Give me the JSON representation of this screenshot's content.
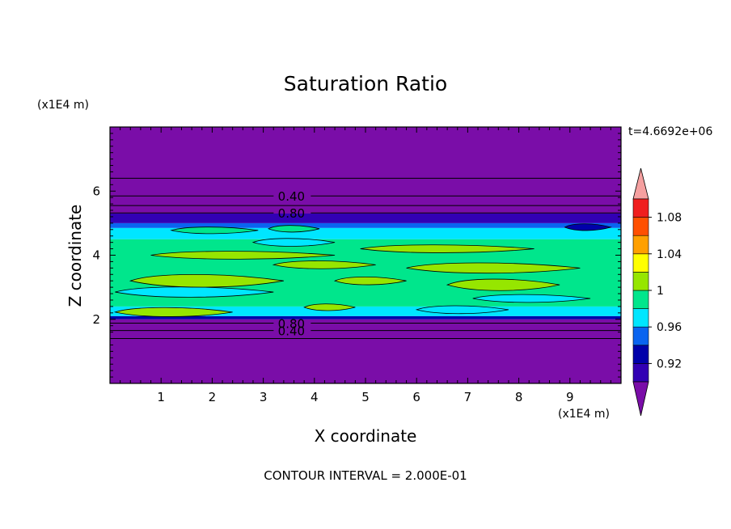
{
  "chart_data": {
    "type": "heatmap",
    "title": "Saturation Ratio",
    "xlabel": "X coordinate",
    "ylabel": "Z coordinate",
    "x_unit": "(x1E4 m)",
    "y_unit": "(x1E4 m)",
    "time_label": "t=4.6692e+06",
    "footer": "CONTOUR INTERVAL = 2.000E-01",
    "xlim": [
      0,
      10
    ],
    "ylim": [
      0,
      8
    ],
    "x_ticks": [
      "1",
      "2",
      "3",
      "4",
      "5",
      "6",
      "7",
      "8",
      "9"
    ],
    "y_ticks": [
      "2",
      "4",
      "6"
    ],
    "colorbar": {
      "levels": [
        0.9,
        0.92,
        0.94,
        0.96,
        0.98,
        1.0,
        1.02,
        1.04,
        1.06,
        1.08,
        1.1
      ],
      "labels": [
        "0.92",
        "0.96",
        "1",
        "1.04",
        "1.08"
      ],
      "colors": [
        "#7a0da8",
        "#3200b4",
        "#0000aa",
        "#0a64f0",
        "#00e6ff",
        "#00e68c",
        "#96e600",
        "#ffff00",
        "#ffa000",
        "#ff5000",
        "#f01e1e",
        "#f5a0a0"
      ],
      "extend": "both"
    },
    "bands": [
      {
        "z0": 0.0,
        "z1": 2.0,
        "level": 0
      },
      {
        "z0": 2.0,
        "z1": 2.1,
        "level": 2
      },
      {
        "z0": 2.1,
        "z1": 2.4,
        "level": 4
      },
      {
        "z0": 2.4,
        "z1": 4.5,
        "level": 5
      },
      {
        "z0": 4.5,
        "z1": 4.85,
        "level": 4
      },
      {
        "z0": 4.85,
        "z1": 5.0,
        "level": 3
      },
      {
        "z0": 5.0,
        "z1": 5.3,
        "level": 1
      },
      {
        "z0": 5.3,
        "z1": 8.0,
        "level": 0
      }
    ],
    "patches": [
      {
        "x0": 0.1,
        "x1": 2.4,
        "z0": 2.1,
        "z1": 2.35,
        "level": 6
      },
      {
        "x0": 3.8,
        "x1": 4.8,
        "z0": 2.3,
        "z1": 2.45,
        "level": 6
      },
      {
        "x0": 0.1,
        "x1": 3.2,
        "z0": 2.7,
        "z1": 3.0,
        "level": 4
      },
      {
        "x0": 0.4,
        "x1": 3.4,
        "z0": 3.0,
        "z1": 3.4,
        "level": 6
      },
      {
        "x0": 3.2,
        "x1": 5.2,
        "z0": 3.6,
        "z1": 3.8,
        "level": 6
      },
      {
        "x0": 5.8,
        "x1": 9.2,
        "z0": 3.45,
        "z1": 3.75,
        "level": 6
      },
      {
        "x0": 6.6,
        "x1": 8.8,
        "z0": 2.9,
        "z1": 3.25,
        "level": 6
      },
      {
        "x0": 7.1,
        "x1": 9.4,
        "z0": 2.55,
        "z1": 2.75,
        "level": 4
      },
      {
        "x0": 4.4,
        "x1": 5.8,
        "z0": 3.1,
        "z1": 3.3,
        "level": 6
      },
      {
        "x0": 2.8,
        "x1": 4.4,
        "z0": 4.3,
        "z1": 4.5,
        "level": 4
      },
      {
        "x0": 4.9,
        "x1": 8.3,
        "z0": 4.1,
        "z1": 4.3,
        "level": 6
      },
      {
        "x0": 0.8,
        "x1": 4.4,
        "z0": 3.9,
        "z1": 4.1,
        "level": 6
      },
      {
        "x0": 1.2,
        "x1": 2.9,
        "z0": 4.7,
        "z1": 4.85,
        "level": 5
      },
      {
        "x0": 3.1,
        "x1": 4.1,
        "z0": 4.75,
        "z1": 4.9,
        "level": 5
      },
      {
        "x0": 6.0,
        "x1": 7.8,
        "z0": 2.2,
        "z1": 2.4,
        "level": 4
      },
      {
        "x0": 8.9,
        "x1": 9.8,
        "z0": 4.8,
        "z1": 4.95,
        "level": 2
      }
    ],
    "contours": [
      {
        "z": 1.4,
        "label": ""
      },
      {
        "z": 1.65,
        "label": "0.40"
      },
      {
        "z": 1.88,
        "label": "0.80"
      },
      {
        "z": 5.32,
        "label": "0.80"
      },
      {
        "z": 5.55,
        "label": ""
      },
      {
        "z": 5.85,
        "label": "0.40"
      },
      {
        "z": 6.4,
        "label": ""
      }
    ]
  }
}
